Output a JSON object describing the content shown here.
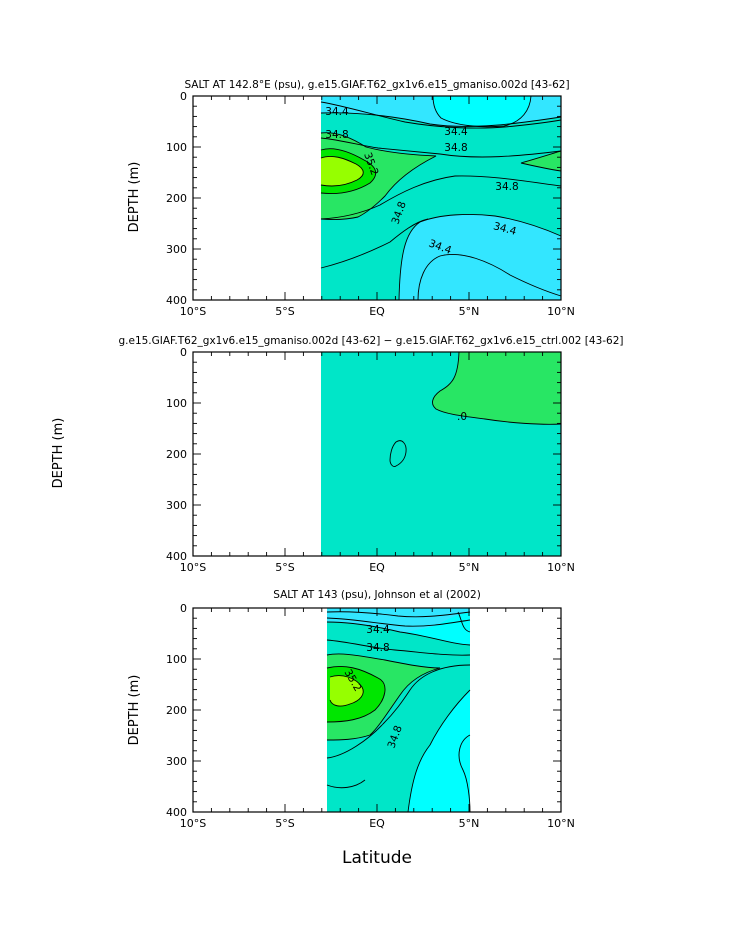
{
  "colors": {
    "fill_34_0": "#00ffff",
    "fill_34_4": "#33e6ff",
    "fill_34_8": "#00e6c8",
    "fill_35_2": "#28e664",
    "fill_35_6": "#00e600",
    "fill_36_0": "#96ff00",
    "diff_fill": "#00e6c8",
    "diff_pos": "#28e664",
    "contour": "#000000",
    "axis": "#000000"
  },
  "figure": {
    "xlabel": "Latitude"
  },
  "chart_data": [
    {
      "type": "contour",
      "title": "SALT AT 142.8°E (psu), g.e15.GIAF.T62_gx1v6.e15_gmaniso.002d [43-62]",
      "ylabel": "DEPTH (m)",
      "xlabel": "",
      "xlim": [
        -10,
        10
      ],
      "ylim": [
        400,
        0
      ],
      "x_ticks": [
        -10,
        -5,
        0,
        5,
        10
      ],
      "x_tick_labels": [
        "10°S",
        "5°S",
        "EQ",
        "5°N",
        "10°N"
      ],
      "y_ticks": [
        0,
        100,
        200,
        300,
        400
      ],
      "y_tick_labels": [
        "0",
        "100",
        "200",
        "300",
        "400"
      ],
      "data_extent_lat": [
        -3.1,
        10
      ],
      "contour_levels": [
        34.0,
        34.4,
        34.8,
        35.2,
        35.6
      ],
      "contour_labels": [
        {
          "text": "34.4",
          "lat": -2.3,
          "depth": 30
        },
        {
          "text": "34.8",
          "lat": -2.3,
          "depth": 75
        },
        {
          "text": "34.4",
          "lat": 4.3,
          "depth": 68
        },
        {
          "text": "34.8",
          "lat": 4.3,
          "depth": 98
        },
        {
          "text": "35.2",
          "lat": -1.3,
          "depth": 142
        },
        {
          "text": "34.8",
          "lat": 6.6,
          "depth": 175
        },
        {
          "text": "34.8",
          "lat": 1.0,
          "depth": 225
        },
        {
          "text": "34.4",
          "lat": 7.0,
          "depth": 258
        },
        {
          "text": "34.4",
          "lat": 3.2,
          "depth": 297
        }
      ]
    },
    {
      "type": "contour",
      "title": "g.e15.GIAF.T62_gx1v6.e15_gmaniso.002d [43-62] − g.e15.GIAF.T62_gx1v6.e15_ctrl.002 [43-62]",
      "ylabel": "DEPTH (m)",
      "xlabel": "",
      "xlim": [
        -10,
        10
      ],
      "ylim": [
        400,
        0
      ],
      "x_ticks": [
        -10,
        -5,
        0,
        5,
        10
      ],
      "x_tick_labels": [
        "10°S",
        "5°S",
        "EQ",
        "5°N",
        "10°N"
      ],
      "y_ticks": [
        0,
        100,
        200,
        300,
        400
      ],
      "y_tick_labels": [
        "0",
        "100",
        "200",
        "300",
        "400"
      ],
      "data_extent_lat": [
        -3.1,
        10
      ],
      "contour_levels": [
        0
      ],
      "contour_labels": [
        {
          "text": ".0",
          "lat": 4.7,
          "depth": 126
        }
      ]
    },
    {
      "type": "contour",
      "title": "SALT AT 143 (psu), Johnson et al (2002)",
      "ylabel": "DEPTH (m)",
      "xlabel": "Latitude",
      "xlim": [
        -10,
        10
      ],
      "ylim": [
        400,
        0
      ],
      "x_ticks": [
        -10,
        -5,
        0,
        5,
        10
      ],
      "x_tick_labels": [
        "10°S",
        "5°S",
        "EQ",
        "5°N",
        "10°N"
      ],
      "y_ticks": [
        0,
        100,
        200,
        300,
        400
      ],
      "y_tick_labels": [
        "0",
        "100",
        "200",
        "300",
        "400"
      ],
      "data_extent_lat": [
        -2.7,
        5
      ],
      "contour_levels": [
        34.0,
        34.4,
        34.8,
        35.2,
        35.6
      ],
      "contour_labels": [
        {
          "text": "34.4",
          "lat": -0.3,
          "depth": 45
        },
        {
          "text": "34.8",
          "lat": -0.3,
          "depth": 77
        },
        {
          "text": "35.2",
          "lat": -1.4,
          "depth": 140
        },
        {
          "text": "34.8",
          "lat": 1.0,
          "depth": 255
        }
      ]
    }
  ]
}
